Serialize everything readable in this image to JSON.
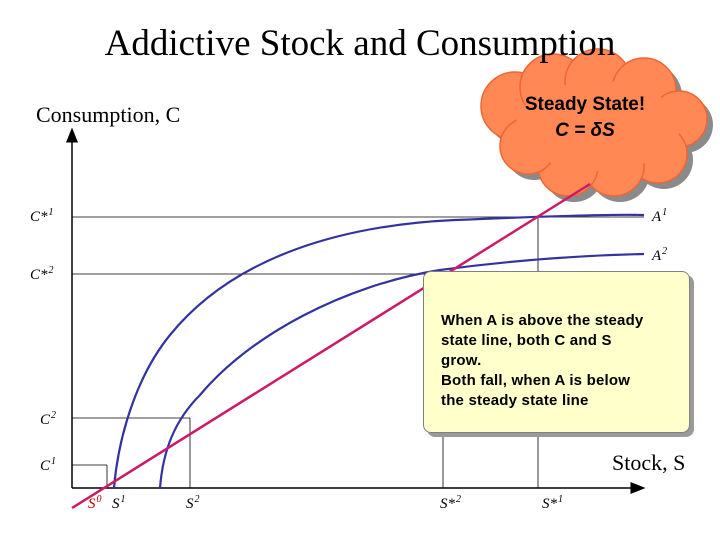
{
  "title": "Addictive Stock and Consumption",
  "y_axis_label": "Consumption, C",
  "x_axis_label": "Stock, S",
  "cloud": {
    "line1": "Steady State!",
    "line2": "C = δS"
  },
  "note": {
    "line1": "When A is above the steady",
    "line2": "state line, both C and S",
    "line3": "grow.",
    "line4": "Both fall, when A is below",
    "line5": "the steady state line"
  },
  "y_ticks": {
    "cstar1": "C*",
    "cstar1_sup": "1",
    "cstar2": "C*",
    "cstar2_sup": "2",
    "c2": "C",
    "c2_sup": "2",
    "c1": "C",
    "c1_sup": "1"
  },
  "x_ticks": {
    "s0": "S",
    "s0_sup": "0",
    "s1": "S",
    "s1_sup": "1",
    "s2": "S",
    "s2_sup": "2",
    "sstar2": "S*",
    "sstar2_sup": "2",
    "sstar1": "S*",
    "sstar1_sup": "1"
  },
  "curve_labels": {
    "a1": "A",
    "a1_sup": "1",
    "a2": "A",
    "a2_sup": "2"
  },
  "colors": {
    "steady_line": "#cc1a66",
    "curves": "#3333a0",
    "axes": "#000000",
    "cloud_fill": "#ff8855",
    "note_fill": "#ffffcc"
  }
}
